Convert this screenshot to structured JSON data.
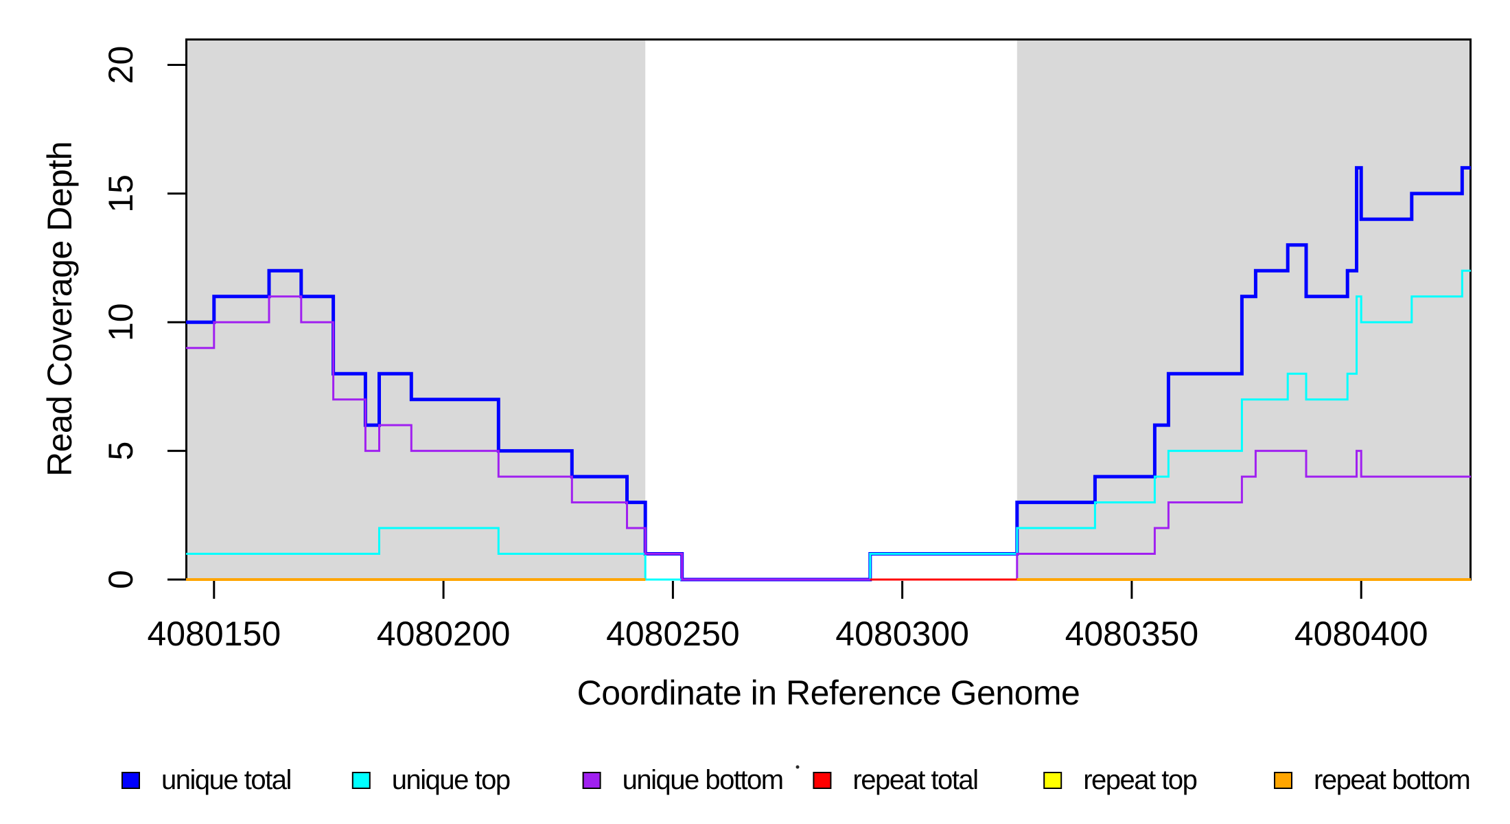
{
  "chart_data": {
    "type": "line",
    "subtype": "step-coverage-plot",
    "title": "",
    "xlabel": "Coordinate in Reference Genome",
    "ylabel": "Read Coverage Depth",
    "xlim": [
      4080143.9,
      4080423.9
    ],
    "ylim": [
      0,
      21
    ],
    "x_ticks": [
      4080150,
      4080200,
      4080250,
      4080300,
      4080350,
      4080400
    ],
    "y_ticks": [
      0,
      5,
      10,
      15,
      20
    ],
    "grid": false,
    "background_color": "#FFFFFF",
    "shade_color": "#D9D9D9",
    "shaded_regions": [
      {
        "x0": 4080143.9,
        "x1": 4080244
      },
      {
        "x0": 4080325,
        "x1": 4080423.9
      }
    ],
    "series": [
      {
        "name": "unique total",
        "color": "#0000FF",
        "line_width": 5,
        "segments": [
          {
            "steps": [
              [
                4080143.9,
                10
              ],
              [
                4080150,
                11
              ],
              [
                4080162,
                12
              ],
              [
                4080169,
                11
              ],
              [
                4080176,
                8
              ],
              [
                4080183,
                6
              ],
              [
                4080186,
                8
              ],
              [
                4080193,
                7
              ],
              [
                4080212,
                5
              ],
              [
                4080228,
                4
              ],
              [
                4080240,
                3
              ],
              [
                4080244,
                1
              ],
              [
                4080252,
                0
              ],
              [
                4080293,
                1
              ],
              [
                4080325,
                3
              ],
              [
                4080342,
                4
              ],
              [
                4080355,
                6
              ],
              [
                4080358,
                8
              ],
              [
                4080374,
                11
              ],
              [
                4080377,
                12
              ],
              [
                4080384,
                13
              ],
              [
                4080388,
                11
              ],
              [
                4080397,
                12
              ],
              [
                4080399,
                16
              ],
              [
                4080400,
                14
              ],
              [
                4080411,
                15
              ],
              [
                4080422,
                16
              ]
            ],
            "end": 4080423.9
          }
        ]
      },
      {
        "name": "unique top",
        "color": "#00FFFF",
        "line_width": 3,
        "segments": [
          {
            "steps": [
              [
                4080143.9,
                1
              ],
              [
                4080186,
                2
              ],
              [
                4080212,
                1
              ],
              [
                4080244,
                0
              ],
              [
                4080293,
                1
              ],
              [
                4080325,
                2
              ],
              [
                4080342,
                3
              ],
              [
                4080355,
                4
              ],
              [
                4080358,
                5
              ],
              [
                4080374,
                7
              ],
              [
                4080384,
                8
              ],
              [
                4080388,
                7
              ],
              [
                4080397,
                8
              ],
              [
                4080399,
                11
              ],
              [
                4080400,
                10
              ],
              [
                4080411,
                11
              ],
              [
                4080422,
                12
              ]
            ],
            "end": 4080423.9
          }
        ]
      },
      {
        "name": "unique bottom",
        "color": "#A020F0",
        "line_width": 3,
        "segments": [
          {
            "steps": [
              [
                4080143.9,
                9
              ],
              [
                4080150,
                10
              ],
              [
                4080162,
                11
              ],
              [
                4080169,
                10
              ],
              [
                4080176,
                7
              ],
              [
                4080183,
                5
              ],
              [
                4080186,
                6
              ],
              [
                4080193,
                5
              ],
              [
                4080212,
                4
              ],
              [
                4080228,
                3
              ],
              [
                4080240,
                2
              ],
              [
                4080244,
                1
              ],
              [
                4080252,
                0
              ],
              [
                4080325,
                1
              ],
              [
                4080355,
                2
              ],
              [
                4080358,
                3
              ],
              [
                4080374,
                4
              ],
              [
                4080377,
                5
              ],
              [
                4080388,
                4
              ],
              [
                4080399,
                5
              ],
              [
                4080400,
                4
              ]
            ],
            "end": 4080423.9
          }
        ]
      },
      {
        "name": "repeat total",
        "color": "#FF0000",
        "line_width": 3,
        "segments": [
          {
            "steps": [
              [
                4080143.9,
                0
              ]
            ],
            "end": 4080244
          },
          {
            "steps": [
              [
                4080293,
                0
              ]
            ],
            "end": 4080423.9
          }
        ]
      },
      {
        "name": "repeat top",
        "color": "#FFFF00",
        "line_width": 3,
        "segments": [
          {
            "steps": [
              [
                4080143.9,
                0
              ]
            ],
            "end": 4080244
          },
          {
            "steps": [
              [
                4080325,
                0
              ]
            ],
            "end": 4080423.9
          }
        ]
      },
      {
        "name": "repeat bottom",
        "color": "#FFA500",
        "line_width": 4,
        "segments": [
          {
            "steps": [
              [
                4080143.9,
                0
              ]
            ],
            "end": 4080244
          },
          {
            "steps": [
              [
                4080325,
                0
              ]
            ],
            "end": 4080423.9
          }
        ]
      }
    ],
    "legend": {
      "position": "bottom",
      "marker": "square",
      "items": [
        {
          "label": "unique total",
          "color": "#0000FF"
        },
        {
          "label": "unique top",
          "color": "#00FFFF"
        },
        {
          "label": "unique bottom",
          "color": "#A020F0"
        },
        {
          "label": "repeat total",
          "color": "#FF0000"
        },
        {
          "label": "repeat top",
          "color": "#FFFF00"
        },
        {
          "label": "repeat bottom",
          "color": "#FFA500"
        }
      ]
    }
  }
}
